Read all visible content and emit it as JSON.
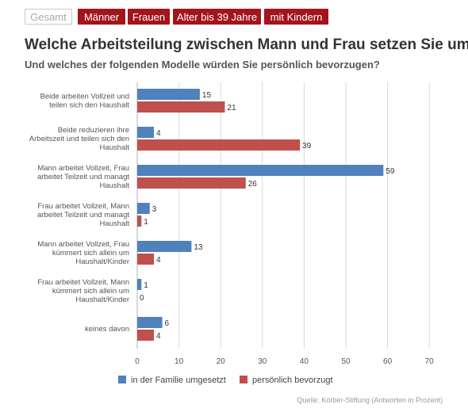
{
  "tabs": [
    {
      "label": "Gesamt",
      "active": true
    },
    {
      "label": "Männer",
      "active": false
    },
    {
      "label": "Frauen",
      "active": false
    },
    {
      "label": "Alter bis 39 Jahre",
      "active": false
    },
    {
      "label": "mit Kindern",
      "active": false
    }
  ],
  "source": "Quelle: Körber-Stiftung (Antworten in Prozent)",
  "colors": {
    "series1": "#4f81bd",
    "series2": "#c0504d",
    "accent": "#a3141b"
  },
  "chart_data": {
    "type": "bar",
    "orientation": "horizontal",
    "title": "Welche Arbeitsteilung zwischen Mann und Frau setzen Sie um?",
    "subtitle": "Und welches der folgenden Modelle würden Sie persönlich bevorzugen?",
    "categories": [
      [
        "Beide arbeiten Vollzeit und",
        "teilen sich den Haushalt"
      ],
      [
        "Beide reduzieren ihre",
        "Arbeitszeit und teilen sich den",
        "Haushalt"
      ],
      [
        "Mann arbeitet Vollzeit, Frau",
        "arbeitet Teilzeit und managt",
        "Haushalt"
      ],
      [
        "Frau arbeitet Vollzeit, Mann",
        "arbeitet Teilzeit und managt",
        "Haushalt"
      ],
      [
        "Mann arbeitet Vollzeit, Frau",
        "kümmert sich allein um",
        "Haushalt/Kinder"
      ],
      [
        "Frau arbeitet Vollzeit, Mann",
        "kümmert sich allein um",
        "Haushalt/Kinder"
      ],
      [
        "keines davon"
      ]
    ],
    "series": [
      {
        "name": "in der Familie umgesetzt",
        "values": [
          15,
          4,
          59,
          3,
          13,
          1,
          6
        ]
      },
      {
        "name": "persönlich bevorzugt",
        "values": [
          21,
          39,
          26,
          1,
          4,
          0,
          4
        ]
      }
    ],
    "xlim": [
      0,
      70
    ],
    "xticks": [
      0,
      10,
      20,
      30,
      40,
      50,
      60,
      70
    ],
    "grid": true,
    "legend_position": "bottom"
  }
}
